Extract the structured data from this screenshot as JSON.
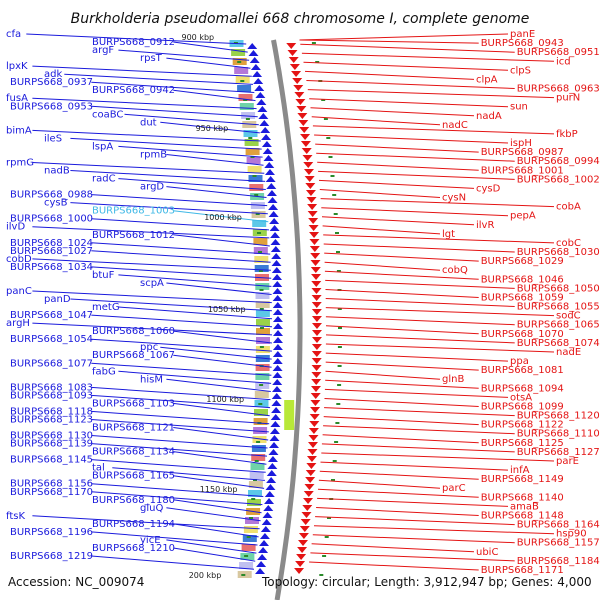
{
  "title": "Burkholderia pseudomallei 668 chromosome I, complete genome",
  "accession": "Accession: NC_009074",
  "summary": "Topology: circular; Length: 3,912,947 bp; Genes: 4,000",
  "colors": {
    "forward": "#1a1adc",
    "reverse": "#e41414",
    "highlight": "#3fb8e6",
    "backbone": "#8a8a8a",
    "tick": "#2a8a2a"
  },
  "scale_labels": [
    "900 kbp",
    "950 kbp",
    "1000 kbp",
    "1050 kbp",
    "1100 kbp",
    "1150 kbp",
    "200 kbp"
  ],
  "left_labels": [
    "cfa",
    "BURPS668_0912",
    "argF",
    "rpsT",
    "lpxK",
    "adk",
    "BURPS668_0937",
    "BURPS668_0942",
    "fusA",
    "BURPS668_0953",
    "coaBC",
    "dut",
    "bimA",
    "ileS",
    "lspA",
    "rpmB",
    "rpmG",
    "nadB",
    "radC",
    "argD",
    "BURPS668_0988",
    "cysB",
    "BURPS668_1003",
    "BURPS668_1000",
    "ilvD",
    "BURPS668_1012",
    "BURPS668_1024",
    "BURPS668_1027",
    "cobD",
    "BURPS668_1034",
    "btuF",
    "scpA",
    "panC",
    "panD",
    "metG",
    "BURPS668_1047",
    "argH",
    "BURPS668_1060",
    "BURPS668_1054",
    "ppc",
    "BURPS668_1067",
    "BURPS668_1077",
    "fabG",
    "hisM",
    "BURPS668_1083",
    "BURPS668_1093",
    "BURPS668_1103",
    "BURPS668_1118",
    "BURPS668_1123",
    "BURPS668_1121",
    "BURPS668_1130",
    "BURPS668_1139",
    "BURPS668_1134",
    "BURPS668_1145",
    "tal",
    "BURPS668_1165",
    "BURPS668_1156",
    "BURPS668_1170",
    "BURPS668_1180",
    "gluQ",
    "ftsK",
    "BURPS668_1194",
    "BURPS668_1196",
    "yicE",
    "BURPS668_1210",
    "BURPS668_1219"
  ],
  "right_labels": [
    "panE",
    "BURPS668_0943",
    "BURPS668_0951",
    "icd",
    "clpS",
    "clpA",
    "BURPS668_0963",
    "purN",
    "sun",
    "nadA",
    "nadC",
    "fkbP",
    "ispH",
    "BURPS668_0987",
    "BURPS668_0994",
    "BURPS668_1001",
    "BURPS668_1002",
    "cysD",
    "cysN",
    "cobA",
    "pepA",
    "ilvR",
    "lgt",
    "cobC",
    "BURPS668_1030",
    "BURPS668_1029",
    "cobQ",
    "BURPS668_1046",
    "BURPS668_1050",
    "BURPS668_1059",
    "BURPS668_1055",
    "sodC",
    "BURPS668_1065",
    "BURPS668_1070",
    "BURPS668_1074",
    "nadE",
    "ppa",
    "BURPS668_1081",
    "glnB",
    "BURPS668_1094",
    "otsA",
    "BURPS668_1099",
    "BURPS668_1120",
    "BURPS668_1122",
    "BURPS668_1110",
    "BURPS668_1125",
    "BURPS668_1127",
    "parE",
    "infA",
    "BURPS668_1149",
    "parC",
    "BURPS668_1140",
    "amaB",
    "BURPS668_1148",
    "BURPS668_1164",
    "hsp90",
    "BURPS668_1157",
    "ubiC",
    "BURPS668_1184",
    "BURPS668_1171"
  ]
}
